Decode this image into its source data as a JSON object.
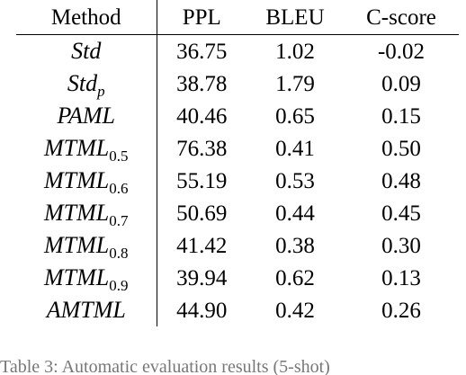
{
  "table": {
    "headers": [
      "Method",
      "PPL",
      "BLEU",
      "C-score"
    ],
    "rows": [
      {
        "method": {
          "base": "Std",
          "sub": ""
        },
        "ppl": "36.75",
        "bleu": "1.02",
        "cscore": "-0.02"
      },
      {
        "method": {
          "base": "Std",
          "sub": "p"
        },
        "ppl": "38.78",
        "bleu": "1.79",
        "cscore": "0.09"
      },
      {
        "method": {
          "base": "PAML",
          "sub": ""
        },
        "ppl": "40.46",
        "bleu": "0.65",
        "cscore": "0.15"
      },
      {
        "method": {
          "base": "MTML",
          "sub": "0.5"
        },
        "ppl": "76.38",
        "bleu": "0.41",
        "cscore": "0.50"
      },
      {
        "method": {
          "base": "MTML",
          "sub": "0.6"
        },
        "ppl": "55.19",
        "bleu": "0.53",
        "cscore": "0.48"
      },
      {
        "method": {
          "base": "MTML",
          "sub": "0.7"
        },
        "ppl": "50.69",
        "bleu": "0.44",
        "cscore": "0.45"
      },
      {
        "method": {
          "base": "MTML",
          "sub": "0.8"
        },
        "ppl": "41.42",
        "bleu": "0.38",
        "cscore": "0.30"
      },
      {
        "method": {
          "base": "MTML",
          "sub": "0.9"
        },
        "ppl": "39.94",
        "bleu": "0.62",
        "cscore": "0.13"
      },
      {
        "method": {
          "base": "AMTML",
          "sub": ""
        },
        "ppl": "44.90",
        "bleu": "0.42",
        "cscore": "0.26"
      }
    ]
  },
  "caption": "Table 3: Automatic evaluation results (5-shot)"
}
